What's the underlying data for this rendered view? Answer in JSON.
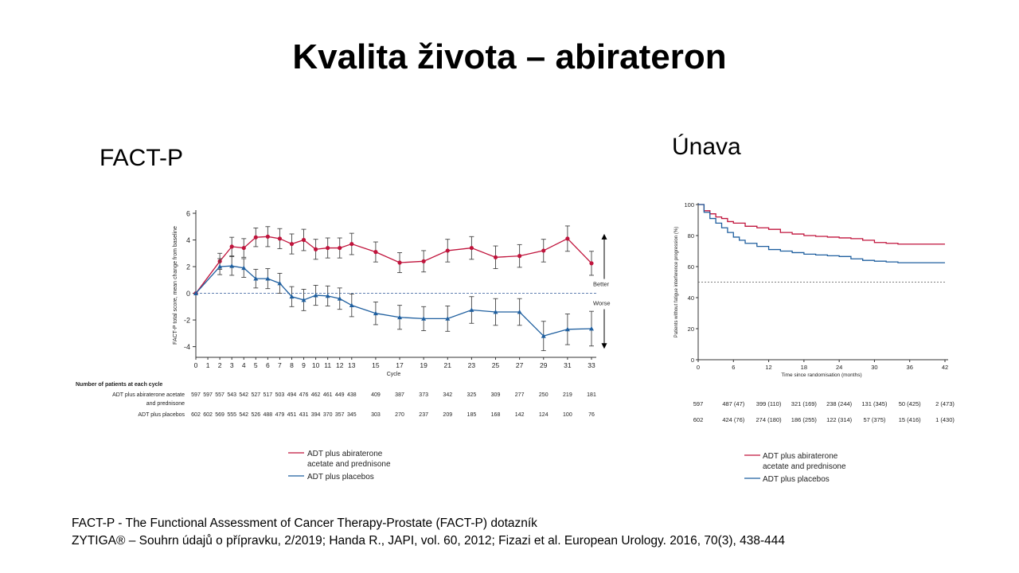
{
  "slide": {
    "title": "Kvalita života – abirateron",
    "left_label": "FACT-P",
    "right_label": "Únava",
    "footnotes": [
      "FACT-P - The Functional Assessment of Cancer Therapy-Prostate (FACT-P) dotazník",
      "ZYTIGA® – Souhrn údajů o přípravku, 2/2019; Handa R., JAPI, vol. 60, 2012; Fizazi et al.  European Urology. 2016, 70(3), 438-444"
    ]
  },
  "colors": {
    "abiraterone": "#c0143c",
    "placebo": "#1f5f9f",
    "error_bar": "#444444"
  },
  "chart_data": [
    {
      "type": "line",
      "xlabel": "Cycle",
      "ylabel": "FACT-P total score, mean change from baseline",
      "xlim": [
        0,
        33
      ],
      "ylim": [
        -4.8,
        6
      ],
      "x_ticks": [
        0,
        1,
        2,
        3,
        4,
        5,
        6,
        7,
        8,
        9,
        10,
        11,
        12,
        13,
        15,
        17,
        19,
        21,
        23,
        25,
        27,
        29,
        31,
        33
      ],
      "y_ticks": [
        -4,
        -2,
        0,
        2,
        4,
        6
      ],
      "better_label": "Better",
      "worse_label": "Worse",
      "series": [
        {
          "name": "ADT plus abiraterone acetate and prednisone",
          "marker": "circle",
          "x": [
            0,
            2,
            3,
            4,
            5,
            6,
            7,
            8,
            9,
            10,
            11,
            12,
            13,
            15,
            17,
            19,
            21,
            23,
            25,
            27,
            29,
            31,
            33
          ],
          "y": [
            0,
            2.4,
            3.5,
            3.4,
            4.2,
            4.25,
            4.1,
            3.7,
            4.0,
            3.3,
            3.4,
            3.4,
            3.7,
            3.1,
            2.3,
            2.4,
            3.2,
            3.4,
            2.7,
            2.8,
            3.2,
            4.1,
            2.25
          ],
          "err": [
            0,
            0.6,
            0.7,
            0.7,
            0.7,
            0.75,
            0.75,
            0.75,
            0.8,
            0.75,
            0.75,
            0.75,
            0.8,
            0.75,
            0.75,
            0.8,
            0.85,
            0.85,
            0.85,
            0.85,
            0.85,
            0.95,
            0.9
          ]
        },
        {
          "name": "ADT plus placebos",
          "marker": "triangle",
          "x": [
            0,
            2,
            3,
            4,
            5,
            6,
            7,
            8,
            9,
            10,
            11,
            12,
            13,
            15,
            17,
            19,
            21,
            23,
            25,
            27,
            29,
            31,
            33
          ],
          "y": [
            0,
            2.0,
            2.05,
            1.9,
            1.1,
            1.1,
            0.75,
            -0.25,
            -0.5,
            -0.15,
            -0.2,
            -0.4,
            -0.9,
            -1.5,
            -1.8,
            -1.9,
            -1.9,
            -1.25,
            -1.4,
            -1.4,
            -3.2,
            -2.7,
            -2.65
          ],
          "err": [
            0,
            0.6,
            0.7,
            0.7,
            0.7,
            0.75,
            0.75,
            0.75,
            0.8,
            0.75,
            0.75,
            0.8,
            0.85,
            0.85,
            0.9,
            0.9,
            0.95,
            1.0,
            1.0,
            1.0,
            1.1,
            1.15,
            1.3
          ]
        }
      ],
      "risk_table": {
        "header": "Number of patients at each cycle",
        "rows": [
          {
            "label": [
              "ADT plus abiraterone acetate",
              "and prednisone"
            ],
            "values": [
              "597",
              "597",
              "557",
              "543",
              "542",
              "527",
              "517",
              "503",
              "494",
              "476",
              "462",
              "461",
              "449",
              "438",
              "409",
              "387",
              "373",
              "342",
              "325",
              "309",
              "277",
              "250",
              "219",
              "181"
            ]
          },
          {
            "label": [
              "ADT plus placebos"
            ],
            "values": [
              "602",
              "602",
              "569",
              "555",
              "542",
              "526",
              "488",
              "479",
              "451",
              "431",
              "394",
              "370",
              "357",
              "345",
              "303",
              "270",
              "237",
              "209",
              "185",
              "168",
              "142",
              "124",
              "100",
              "76"
            ]
          }
        ]
      },
      "legend": [
        {
          "label": [
            "ADT plus abiraterone",
            "acetate and prednisone"
          ],
          "series": 0
        },
        {
          "label": [
            "ADT plus placebos"
          ],
          "series": 1
        }
      ]
    },
    {
      "type": "line",
      "xlabel": "Time since randomisation (months)",
      "ylabel": "Patients without fatigue interference progression (%)",
      "xlim": [
        0,
        42
      ],
      "ylim": [
        0,
        100
      ],
      "x_ticks": [
        0,
        6,
        12,
        18,
        24,
        30,
        36,
        42
      ],
      "y_ticks": [
        0,
        20,
        40,
        60,
        80,
        100
      ],
      "reference_line": 50,
      "series": [
        {
          "name": "ADT plus abiraterone acetate and prednisone",
          "x": [
            0,
            1,
            2,
            3,
            4,
            5,
            6,
            8,
            10,
            12,
            14,
            16,
            18,
            20,
            22,
            24,
            26,
            28,
            30,
            32,
            34,
            36,
            38,
            40,
            42
          ],
          "y": [
            100,
            96,
            94,
            92,
            91,
            89,
            88,
            86,
            85,
            84,
            82,
            81,
            80,
            79.5,
            79,
            78.5,
            78,
            77,
            75.5,
            75,
            74.5,
            74.5,
            74.5,
            74.5,
            74.5
          ]
        },
        {
          "name": "ADT plus placebos",
          "x": [
            0,
            1,
            2,
            3,
            4,
            5,
            6,
            7,
            8,
            10,
            12,
            14,
            16,
            18,
            20,
            22,
            24,
            26,
            28,
            30,
            32,
            34,
            36,
            38,
            40,
            42
          ],
          "y": [
            100,
            95,
            91,
            88,
            85,
            82,
            79,
            77,
            75,
            73,
            71,
            70,
            69,
            68,
            67.5,
            67,
            66.5,
            65,
            64,
            63.5,
            63,
            62.5,
            62.5,
            62.5,
            62.5,
            62.5
          ]
        }
      ],
      "risk_table": {
        "rows": [
          {
            "values": [
              "597",
              "487 (47)",
              "399 (110)",
              "321 (169)",
              "238 (244)",
              "131 (345)",
              "50 (425)",
              "2 (473)"
            ]
          },
          {
            "values": [
              "602",
              "424 (76)",
              "274 (180)",
              "186 (255)",
              "122 (314)",
              "57 (375)",
              "15 (416)",
              "1 (430)"
            ]
          }
        ]
      },
      "legend": [
        {
          "label": [
            "ADT plus abiraterone",
            "acetate and prednisone"
          ],
          "series": 0
        },
        {
          "label": [
            "ADT plus placebos"
          ],
          "series": 1
        }
      ]
    }
  ]
}
